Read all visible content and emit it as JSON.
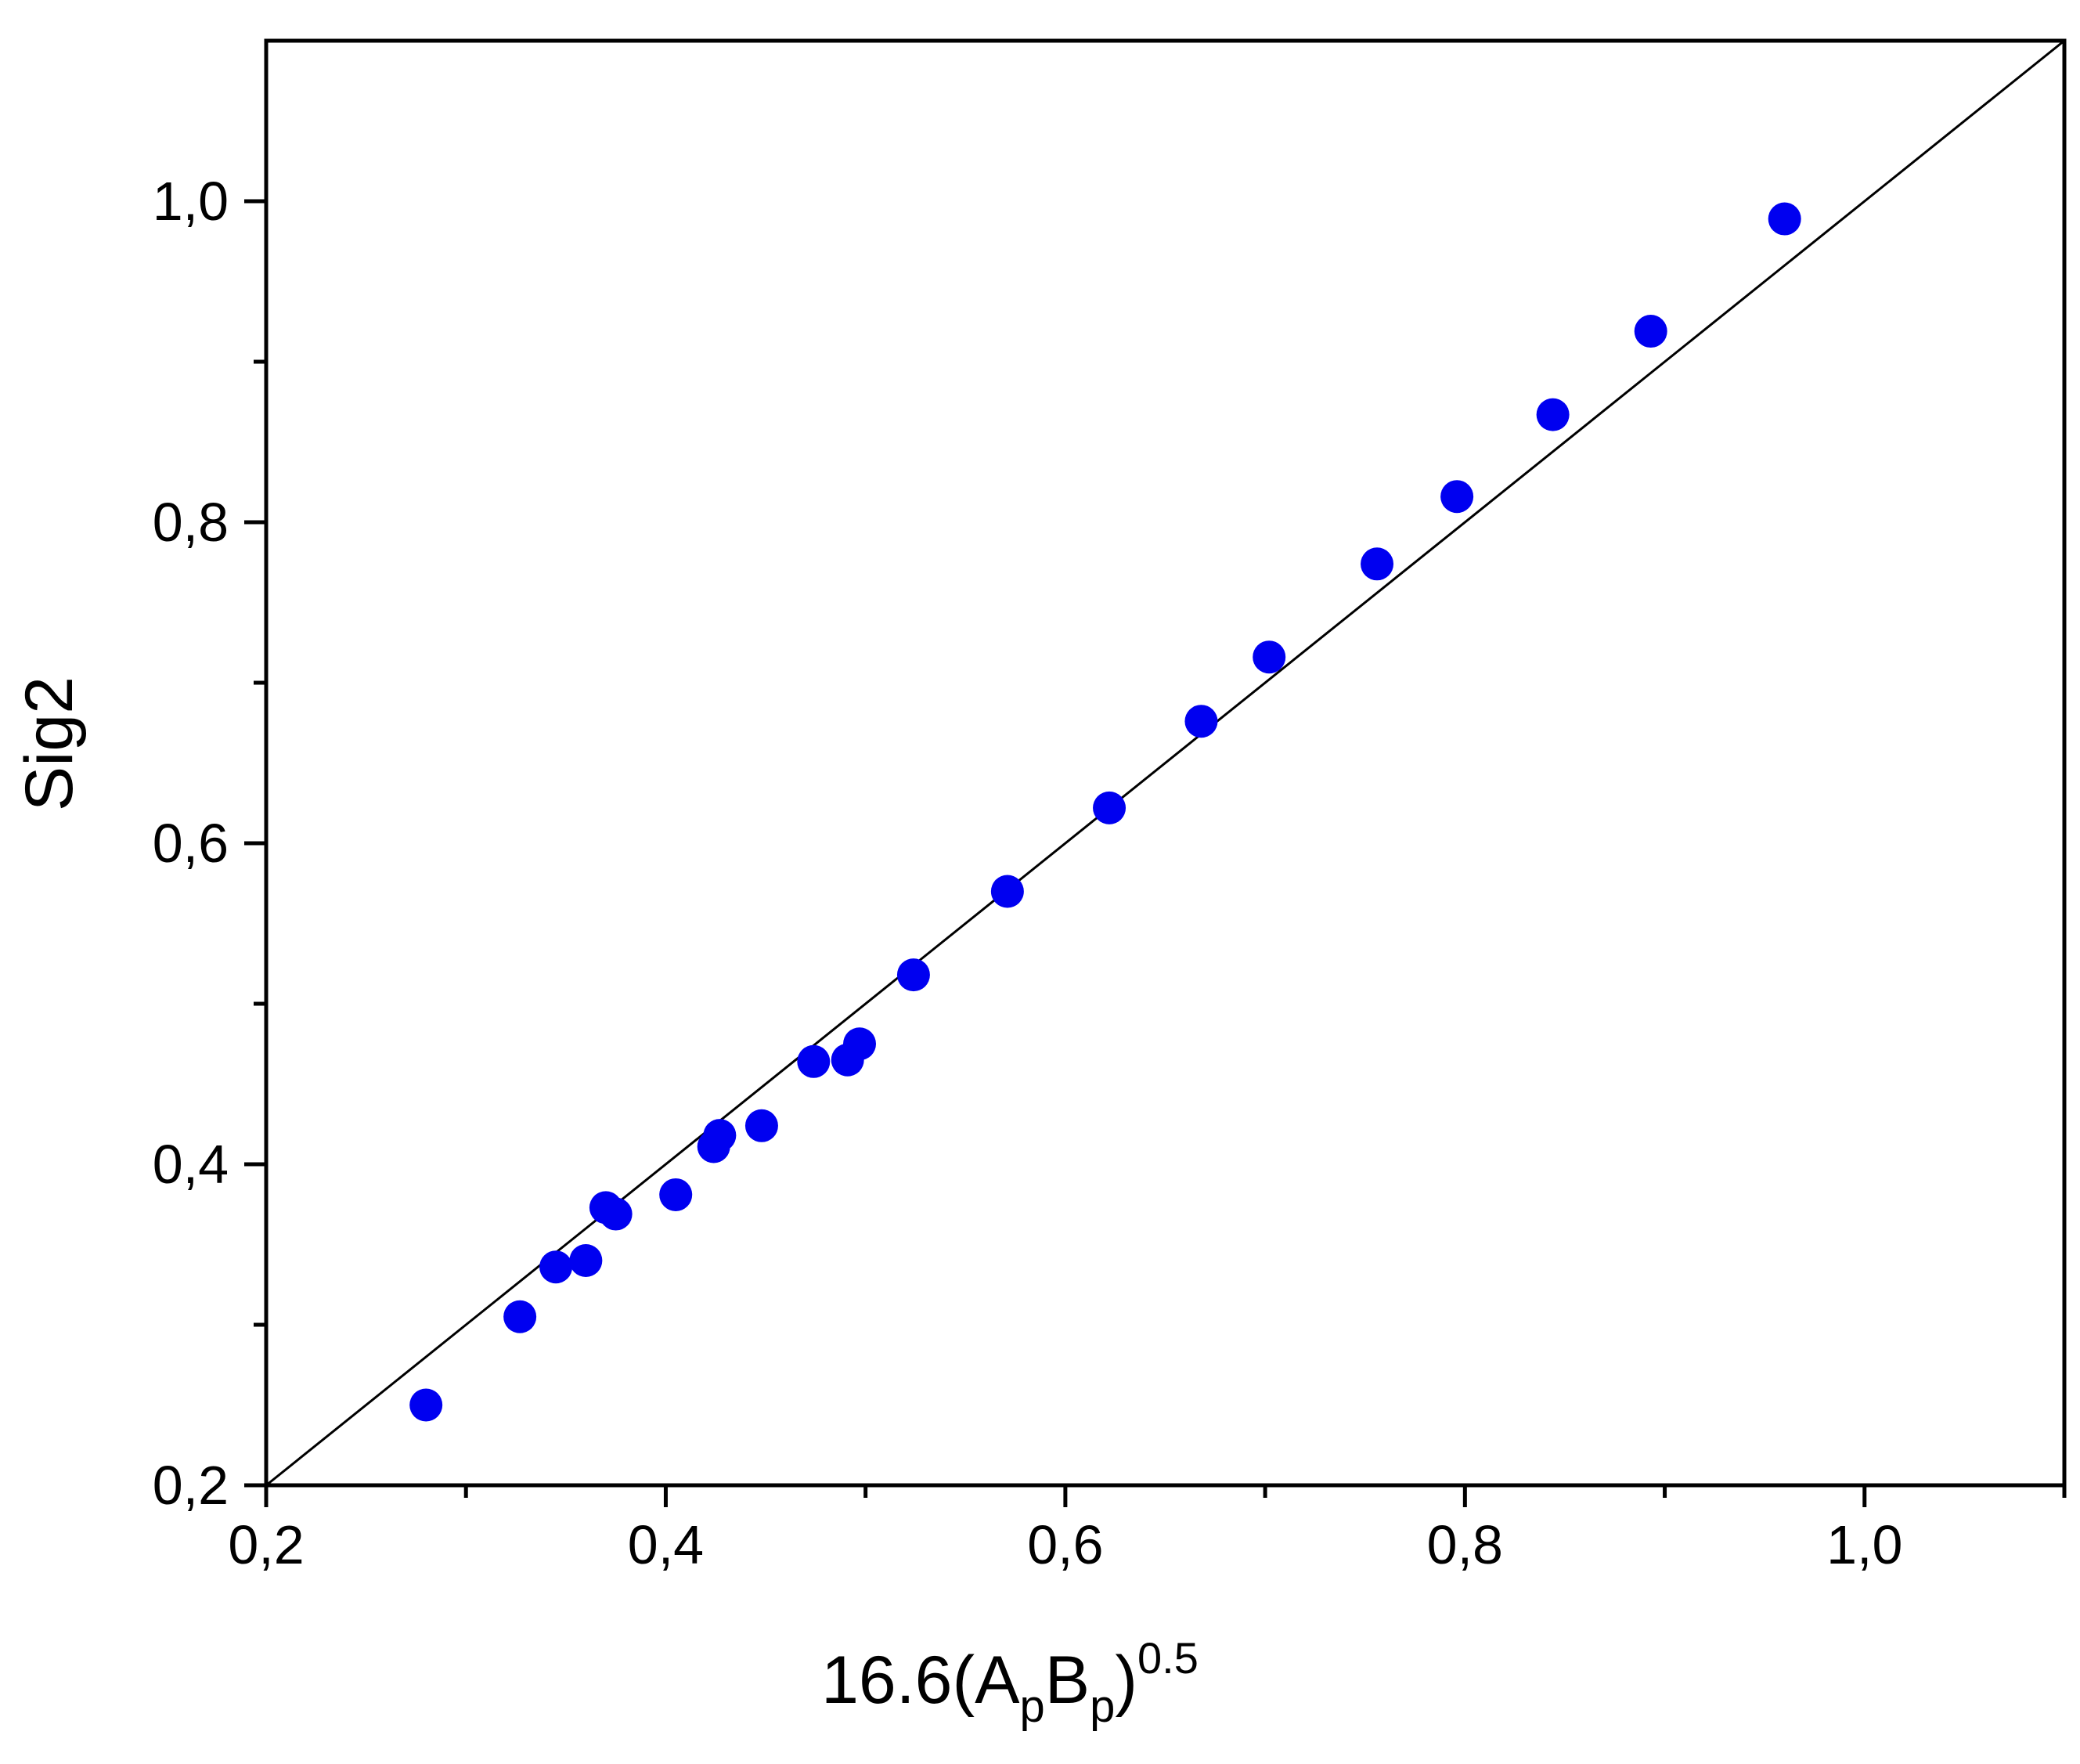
{
  "chart_data": {
    "type": "scatter",
    "xlabel": {
      "prefix": "16.6(A",
      "sub1": "p",
      "mid": "B",
      "sub2": "p",
      "close": ")",
      "sup": "0.5"
    },
    "ylabel": "Sig2",
    "xlim": [
      0.2,
      1.1
    ],
    "ylim": [
      0.2,
      1.1
    ],
    "x_major_ticks": [
      0.2,
      0.4,
      0.6,
      0.8,
      1.0
    ],
    "x_tick_labels": [
      "0,2",
      "0,4",
      "0,6",
      "0,8",
      "1,0"
    ],
    "x_minor_ticks": [
      0.3,
      0.5,
      0.7,
      0.9,
      1.1
    ],
    "y_major_ticks": [
      0.2,
      0.4,
      0.6,
      0.8,
      1.0
    ],
    "y_tick_labels": [
      "0,2",
      "0,4",
      "0,6",
      "0,8",
      "1,0"
    ],
    "y_minor_ticks": [
      0.3,
      0.5,
      0.7,
      0.9
    ],
    "grid": false,
    "marker_color": "#0000f0",
    "line_color": "#000000",
    "reference_line": {
      "x": [
        0.2,
        1.1
      ],
      "y": [
        0.2,
        1.1
      ]
    },
    "points": [
      {
        "x": 0.28,
        "y": 0.25
      },
      {
        "x": 0.327,
        "y": 0.305
      },
      {
        "x": 0.345,
        "y": 0.336
      },
      {
        "x": 0.36,
        "y": 0.34
      },
      {
        "x": 0.37,
        "y": 0.373
      },
      {
        "x": 0.375,
        "y": 0.369
      },
      {
        "x": 0.405,
        "y": 0.381
      },
      {
        "x": 0.424,
        "y": 0.411
      },
      {
        "x": 0.427,
        "y": 0.418
      },
      {
        "x": 0.448,
        "y": 0.424
      },
      {
        "x": 0.474,
        "y": 0.464
      },
      {
        "x": 0.491,
        "y": 0.465
      },
      {
        "x": 0.497,
        "y": 0.475
      },
      {
        "x": 0.524,
        "y": 0.518
      },
      {
        "x": 0.571,
        "y": 0.57
      },
      {
        "x": 0.622,
        "y": 0.622
      },
      {
        "x": 0.668,
        "y": 0.676
      },
      {
        "x": 0.702,
        "y": 0.716
      },
      {
        "x": 0.756,
        "y": 0.774
      },
      {
        "x": 0.796,
        "y": 0.816
      },
      {
        "x": 0.844,
        "y": 0.867
      },
      {
        "x": 0.893,
        "y": 0.919
      },
      {
        "x": 0.96,
        "y": 0.989
      }
    ]
  }
}
